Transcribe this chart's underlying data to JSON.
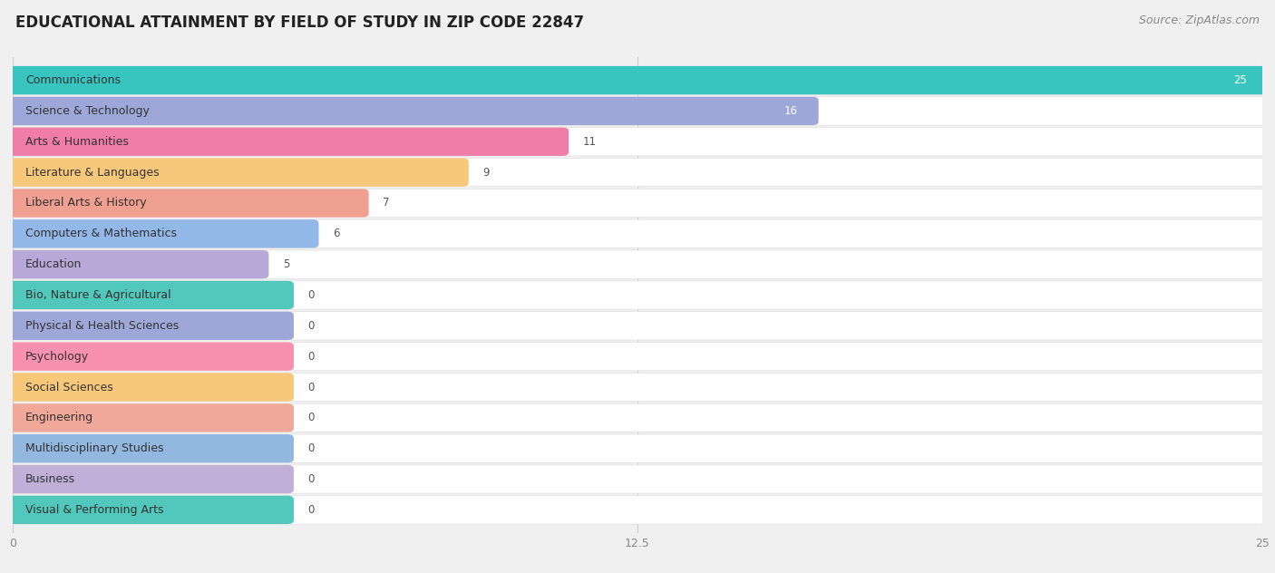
{
  "title": "EDUCATIONAL ATTAINMENT BY FIELD OF STUDY IN ZIP CODE 22847",
  "source": "Source: ZipAtlas.com",
  "categories": [
    "Communications",
    "Science & Technology",
    "Arts & Humanities",
    "Literature & Languages",
    "Liberal Arts & History",
    "Computers & Mathematics",
    "Education",
    "Bio, Nature & Agricultural",
    "Physical & Health Sciences",
    "Psychology",
    "Social Sciences",
    "Engineering",
    "Multidisciplinary Studies",
    "Business",
    "Visual & Performing Arts"
  ],
  "values": [
    25,
    16,
    11,
    9,
    7,
    6,
    5,
    0,
    0,
    0,
    0,
    0,
    0,
    0,
    0
  ],
  "colors": [
    "#38c5c0",
    "#9da8d8",
    "#f07ca8",
    "#f8c87a",
    "#f0a090",
    "#92b8e8",
    "#b8a8d8",
    "#52c8bc",
    "#9da8d8",
    "#f890b0",
    "#f8c87a",
    "#f0a898",
    "#92b8e0",
    "#c0b0d8",
    "#52c8bc"
  ],
  "xlim": [
    0,
    25
  ],
  "xticks": [
    0,
    12.5,
    25
  ],
  "background_color": "#f0f0f0",
  "bar_bg_color": "#ffffff",
  "zero_bar_width": 5.5,
  "title_fontsize": 12,
  "source_fontsize": 9,
  "label_fontsize": 9
}
